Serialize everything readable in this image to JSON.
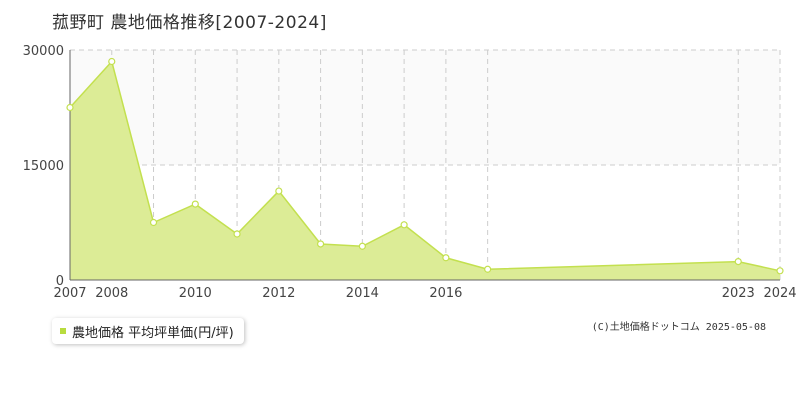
{
  "chart_data": {
    "type": "area",
    "title": "菰野町 農地価格推移[2007-2024]",
    "x": [
      2007,
      2008,
      2009,
      2010,
      2011,
      2012,
      2013,
      2014,
      2015,
      2016,
      2017,
      2023,
      2024
    ],
    "x_tick_labels": [
      "2007",
      "2008",
      "",
      "2010",
      "",
      "2012",
      "",
      "2014",
      "",
      "2016",
      "",
      "2023",
      "2024"
    ],
    "series": [
      {
        "name": "農地価格 平均坪単価(円/坪)",
        "values": [
          22500,
          28500,
          7500,
          9900,
          6000,
          11600,
          4700,
          4400,
          7200,
          2900,
          1400,
          2400,
          1200
        ]
      }
    ],
    "ylim": [
      0,
      30000
    ],
    "y_ticks": [
      0,
      15000,
      30000
    ],
    "grid": true,
    "legend_position": "bottom-left",
    "colors": {
      "fill": "#dcec96",
      "line": "#c3e04f",
      "marker_stroke": "#c3e04f",
      "marker_fill": "#ffffff",
      "grid": "#cccccc",
      "axis": "#666666",
      "upper_band": "#fafafa",
      "legend_swatch": "#b8dc3e"
    }
  },
  "legend": {
    "label": "農地価格 平均坪単価(円/坪)"
  },
  "credit": "(C)土地価格ドットコム 2025-05-08"
}
